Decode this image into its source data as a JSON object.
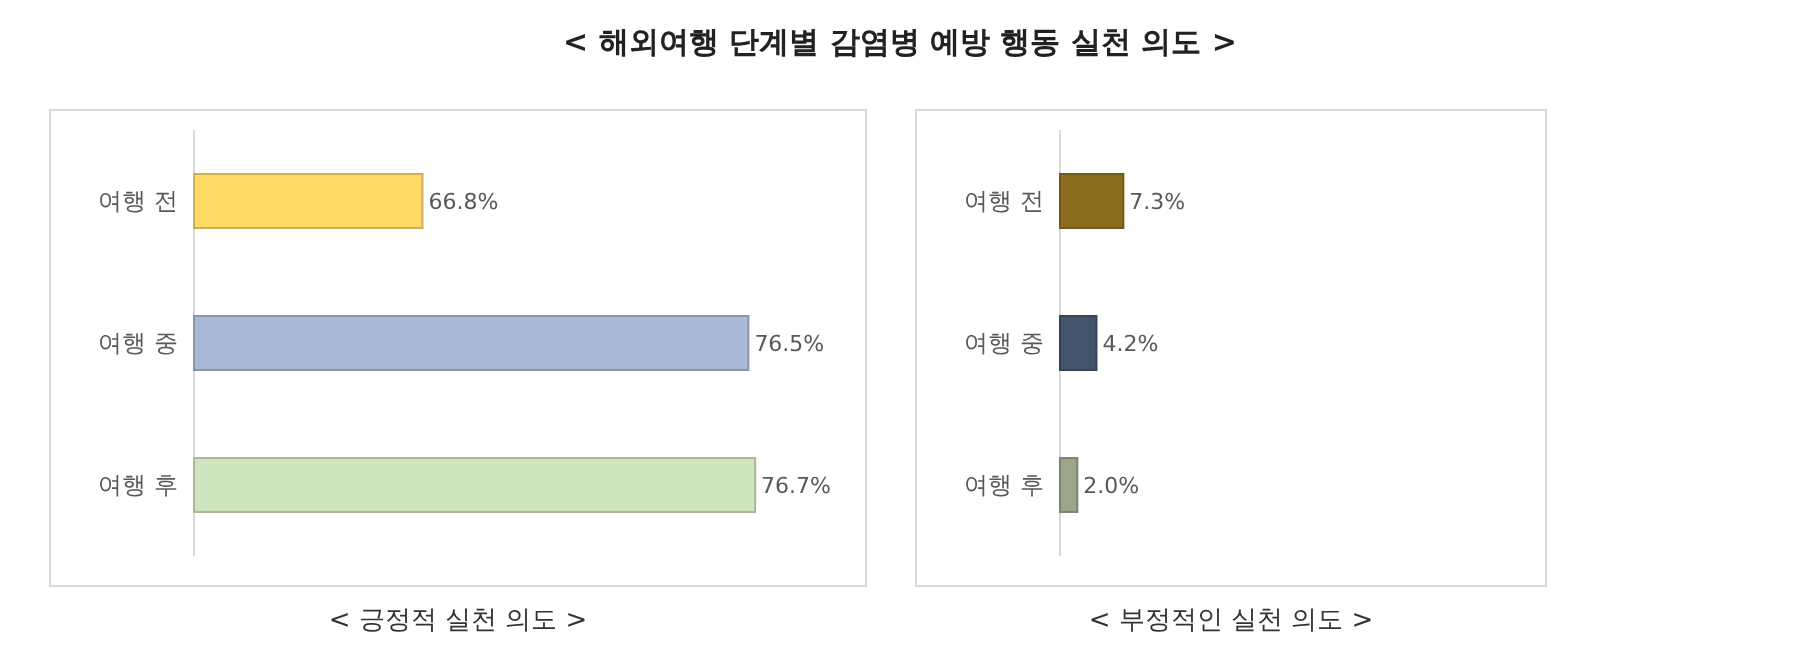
{
  "chart_data": [
    {
      "type": "bar",
      "orientation": "horizontal",
      "title": "< 해외여행 단계별 감염병 예방 행동 실천 의도 >",
      "xlabel": "< 긍정적 실천 의도 >",
      "categories": [
        "여행 전",
        "여행 중",
        "여행 후"
      ],
      "values": [
        66.8,
        76.5,
        76.7
      ],
      "value_labels": [
        "66.8%",
        "76.5%",
        "76.7%"
      ],
      "colors": [
        "#ffd966",
        "#a9b8d6",
        "#cfe5bd"
      ],
      "xlim": [
        60,
        80
      ],
      "tick_labels": "y"
    },
    {
      "type": "bar",
      "orientation": "horizontal",
      "xlabel": "< 부정적인 실천 의도 >",
      "categories": [
        "여행 전",
        "여행 중",
        "여행 후"
      ],
      "values": [
        7.3,
        4.2,
        2.0
      ],
      "value_labels": [
        "7.3%",
        "4.2%",
        "2.0%"
      ],
      "colors": [
        "#8c6d1f",
        "#44546a",
        "#9aa58a"
      ],
      "xlim": [
        0,
        56
      ],
      "tick_labels": "y"
    }
  ]
}
